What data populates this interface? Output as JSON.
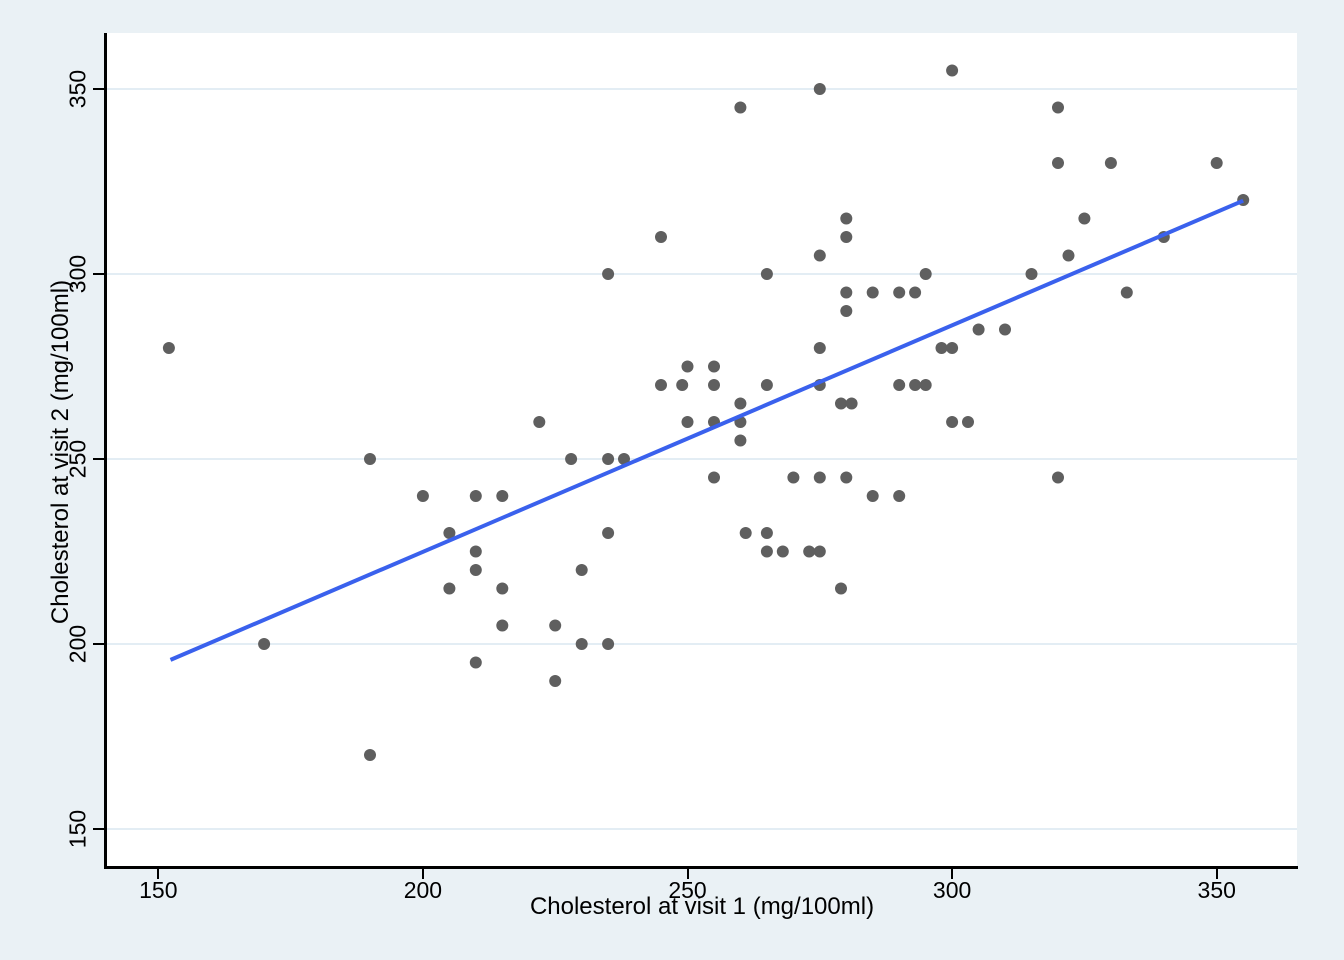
{
  "figure": {
    "background_color": "#eaf1f5",
    "plot_background_color": "#ffffff",
    "grid_color": "#e3edf4",
    "axis_color": "#000000",
    "point_color": "#5f5f5f",
    "fit_line_color": "#3a61ed"
  },
  "chart_data": {
    "type": "scatter",
    "title": "",
    "xlabel": "Cholesterol at visit 1 (mg/100ml)",
    "ylabel": "Cholesterol at visit 2 (mg/100ml)",
    "x_ticks": [
      150,
      200,
      250,
      300,
      350
    ],
    "y_ticks": [
      150,
      200,
      250,
      300,
      350
    ],
    "xlim": [
      140,
      365
    ],
    "ylim": [
      140,
      365
    ],
    "grid": "horizontal gridlines only",
    "legend": "none",
    "points": [
      [
        152,
        280
      ],
      [
        170,
        200
      ],
      [
        190,
        250
      ],
      [
        190,
        170
      ],
      [
        200,
        240
      ],
      [
        205,
        230
      ],
      [
        205,
        215
      ],
      [
        210,
        240
      ],
      [
        210,
        225
      ],
      [
        210,
        220
      ],
      [
        210,
        195
      ],
      [
        215,
        240
      ],
      [
        215,
        215
      ],
      [
        215,
        205
      ],
      [
        222,
        260
      ],
      [
        225,
        205
      ],
      [
        225,
        190
      ],
      [
        228,
        250
      ],
      [
        230,
        220
      ],
      [
        230,
        200
      ],
      [
        235,
        300
      ],
      [
        235,
        250
      ],
      [
        235,
        230
      ],
      [
        235,
        200
      ],
      [
        238,
        250
      ],
      [
        245,
        310
      ],
      [
        245,
        270
      ],
      [
        249,
        270
      ],
      [
        250,
        275
      ],
      [
        250,
        260
      ],
      [
        255,
        275
      ],
      [
        255,
        270
      ],
      [
        255,
        260
      ],
      [
        255,
        245
      ],
      [
        260,
        345
      ],
      [
        260,
        265
      ],
      [
        260,
        260
      ],
      [
        260,
        255
      ],
      [
        261,
        230
      ],
      [
        265,
        300
      ],
      [
        265,
        270
      ],
      [
        265,
        230
      ],
      [
        265,
        225
      ],
      [
        268,
        225
      ],
      [
        270,
        245
      ],
      [
        273,
        225
      ],
      [
        275,
        350
      ],
      [
        275,
        305
      ],
      [
        275,
        280
      ],
      [
        275,
        270
      ],
      [
        275,
        245
      ],
      [
        275,
        225
      ],
      [
        279,
        265
      ],
      [
        279,
        215
      ],
      [
        280,
        315
      ],
      [
        280,
        310
      ],
      [
        280,
        295
      ],
      [
        280,
        290
      ],
      [
        280,
        245
      ],
      [
        281,
        265
      ],
      [
        285,
        295
      ],
      [
        285,
        240
      ],
      [
        290,
        295
      ],
      [
        290,
        270
      ],
      [
        290,
        240
      ],
      [
        293,
        295
      ],
      [
        293,
        270
      ],
      [
        295,
        300
      ],
      [
        295,
        270
      ],
      [
        298,
        280
      ],
      [
        300,
        355
      ],
      [
        300,
        280
      ],
      [
        300,
        260
      ],
      [
        303,
        260
      ],
      [
        305,
        285
      ],
      [
        310,
        285
      ],
      [
        315,
        300
      ],
      [
        320,
        345
      ],
      [
        320,
        330
      ],
      [
        320,
        245
      ],
      [
        322,
        305
      ],
      [
        325,
        315
      ],
      [
        330,
        330
      ],
      [
        333,
        295
      ],
      [
        340,
        310
      ],
      [
        350,
        330
      ],
      [
        355,
        320
      ]
    ],
    "fit_line": {
      "x_start": 152.3,
      "y_start": 195.7,
      "x_end": 355.0,
      "y_end": 319.8
    }
  }
}
